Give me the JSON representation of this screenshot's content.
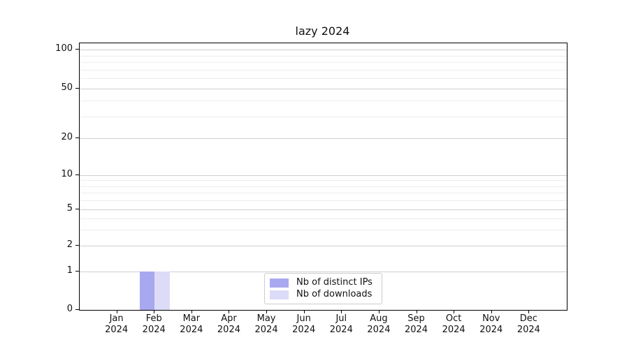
{
  "title": "lazy 2024",
  "chart_data": {
    "type": "bar",
    "title": "lazy 2024",
    "categories": [
      "Jan",
      "Feb",
      "Mar",
      "Apr",
      "May",
      "Jun",
      "Jul",
      "Aug",
      "Sep",
      "Oct",
      "Nov",
      "Dec"
    ],
    "year": "2024",
    "series": [
      {
        "name": "Nb of distinct IPs",
        "color": "#a8a8f0",
        "values": [
          0,
          1,
          0,
          0,
          0,
          0,
          0,
          0,
          0,
          0,
          0,
          0
        ]
      },
      {
        "name": "Nb of downloads",
        "color": "#dcdcf8",
        "values": [
          0,
          1,
          0,
          0,
          0,
          0,
          0,
          0,
          0,
          0,
          0,
          0
        ]
      }
    ],
    "y_ticks": [
      0,
      1,
      2,
      5,
      10,
      20,
      50,
      100
    ],
    "ylim": [
      0,
      100
    ],
    "yscale": "symlog",
    "xlabel": "",
    "ylabel": "",
    "grid": true,
    "legend_position": "lower-center-inside"
  },
  "legend": {
    "items": [
      {
        "label": "Nb of distinct IPs",
        "color": "#a8a8f0"
      },
      {
        "label": "Nb of downloads",
        "color": "#dcdcf8"
      }
    ]
  }
}
